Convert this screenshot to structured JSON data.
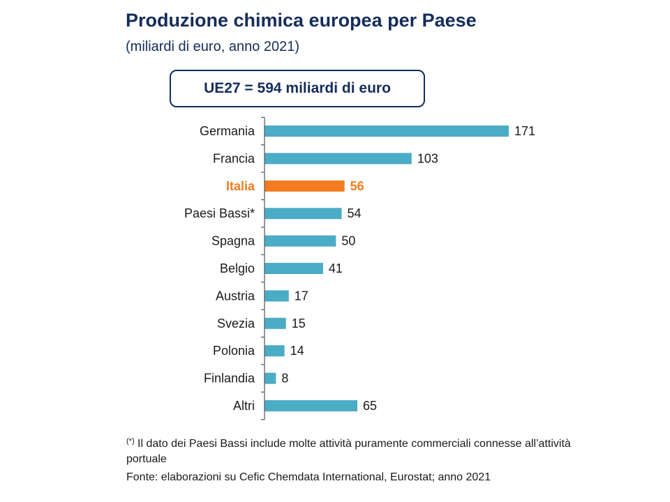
{
  "header": {
    "title": "Produzione chimica europea per Paese",
    "subtitle": "(miliardi di euro, anno 2021)"
  },
  "total_box": "UE27 = 594 miliardi di euro",
  "colors": {
    "bar": "#4bacc6",
    "highlight": "#f47b20",
    "title": "#142d5a"
  },
  "chart_data": {
    "type": "bar",
    "orientation": "horizontal",
    "categories": [
      "Germania",
      "Francia",
      "Italia",
      "Paesi Bassi*",
      "Spagna",
      "Belgio",
      "Austria",
      "Svezia",
      "Polonia",
      "Finlandia",
      "Altri"
    ],
    "values": [
      171,
      103,
      56,
      54,
      50,
      41,
      17,
      15,
      14,
      8,
      65
    ],
    "highlight_category": "Italia",
    "xlim": [
      0,
      190
    ],
    "grid": false,
    "legend": "none"
  },
  "footnote": {
    "marker": "(*)",
    "text": " Il dato dei Paesi Bassi include molte attività puramente commerciali connesse all’attività portuale"
  },
  "source": "Fonte: elaborazioni su Cefic Chemdata International, Eurostat; anno 2021"
}
